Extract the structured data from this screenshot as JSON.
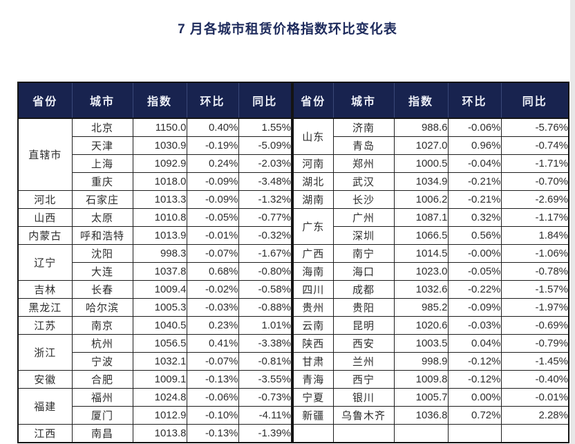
{
  "title": "7 月各城市租赁价格指数环比变化表",
  "columns": [
    "省份",
    "城市",
    "指数",
    "环比",
    "同比"
  ],
  "colors": {
    "header_bg": "#18234f",
    "header_text": "#edf0f8",
    "title_text": "#1e2b5c",
    "border": "#1c1c1c",
    "body_text": "#2d2d2d"
  },
  "left_table": {
    "groups": [
      {
        "province": "直辖市",
        "cities": [
          {
            "city": "北京",
            "index": "1150.0",
            "mom": "0.40%",
            "yoy": "1.55%"
          },
          {
            "city": "天津",
            "index": "1030.9",
            "mom": "-0.19%",
            "yoy": "-5.09%"
          },
          {
            "city": "上海",
            "index": "1092.9",
            "mom": "0.24%",
            "yoy": "-2.03%"
          },
          {
            "city": "重庆",
            "index": "1018.0",
            "mom": "-0.09%",
            "yoy": "-3.48%"
          }
        ]
      },
      {
        "province": "河北",
        "cities": [
          {
            "city": "石家庄",
            "index": "1013.3",
            "mom": "-0.09%",
            "yoy": "-1.32%"
          }
        ]
      },
      {
        "province": "山西",
        "cities": [
          {
            "city": "太原",
            "index": "1010.8",
            "mom": "-0.05%",
            "yoy": "-0.77%"
          }
        ]
      },
      {
        "province": "内蒙古",
        "cities": [
          {
            "city": "呼和浩特",
            "index": "1013.9",
            "mom": "-0.01%",
            "yoy": "-0.32%"
          }
        ]
      },
      {
        "province": "辽宁",
        "cities": [
          {
            "city": "沈阳",
            "index": "998.3",
            "mom": "-0.07%",
            "yoy": "-1.67%"
          },
          {
            "city": "大连",
            "index": "1037.8",
            "mom": "0.68%",
            "yoy": "-0.80%"
          }
        ]
      },
      {
        "province": "吉林",
        "cities": [
          {
            "city": "长春",
            "index": "1009.4",
            "mom": "-0.02%",
            "yoy": "-0.58%"
          }
        ]
      },
      {
        "province": "黑龙江",
        "cities": [
          {
            "city": "哈尔滨",
            "index": "1005.3",
            "mom": "-0.03%",
            "yoy": "-0.88%"
          }
        ]
      },
      {
        "province": "江苏",
        "cities": [
          {
            "city": "南京",
            "index": "1040.5",
            "mom": "0.23%",
            "yoy": "1.01%"
          }
        ]
      },
      {
        "province": "浙江",
        "cities": [
          {
            "city": "杭州",
            "index": "1056.5",
            "mom": "0.41%",
            "yoy": "-3.38%"
          },
          {
            "city": "宁波",
            "index": "1032.1",
            "mom": "-0.07%",
            "yoy": "-0.81%"
          }
        ]
      },
      {
        "province": "安徽",
        "cities": [
          {
            "city": "合肥",
            "index": "1009.1",
            "mom": "-0.13%",
            "yoy": "-3.55%"
          }
        ]
      },
      {
        "province": "福建",
        "cities": [
          {
            "city": "福州",
            "index": "1024.8",
            "mom": "-0.06%",
            "yoy": "-0.73%"
          },
          {
            "city": "厦门",
            "index": "1012.9",
            "mom": "-0.10%",
            "yoy": "-4.11%"
          }
        ]
      },
      {
        "province": "江西",
        "cities": [
          {
            "city": "南昌",
            "index": "1013.8",
            "mom": "-0.13%",
            "yoy": "-1.39%"
          }
        ]
      }
    ]
  },
  "right_table": {
    "groups": [
      {
        "province": "山东",
        "cities": [
          {
            "city": "济南",
            "index": "988.6",
            "mom": "-0.06%",
            "yoy": "-5.76%"
          },
          {
            "city": "青岛",
            "index": "1027.0",
            "mom": "0.96%",
            "yoy": "-0.74%"
          }
        ]
      },
      {
        "province": "河南",
        "cities": [
          {
            "city": "郑州",
            "index": "1000.5",
            "mom": "-0.04%",
            "yoy": "-1.71%"
          }
        ]
      },
      {
        "province": "湖北",
        "cities": [
          {
            "city": "武汉",
            "index": "1034.9",
            "mom": "-0.21%",
            "yoy": "-0.70%"
          }
        ]
      },
      {
        "province": "湖南",
        "cities": [
          {
            "city": "长沙",
            "index": "1006.2",
            "mom": "-0.21%",
            "yoy": "-2.69%"
          }
        ]
      },
      {
        "province": "广东",
        "cities": [
          {
            "city": "广州",
            "index": "1087.1",
            "mom": "0.32%",
            "yoy": "-1.17%"
          },
          {
            "city": "深圳",
            "index": "1066.5",
            "mom": "0.56%",
            "yoy": "1.84%"
          }
        ]
      },
      {
        "province": "广西",
        "cities": [
          {
            "city": "南宁",
            "index": "1014.5",
            "mom": "-0.00%",
            "yoy": "-1.06%"
          }
        ]
      },
      {
        "province": "海南",
        "cities": [
          {
            "city": "海口",
            "index": "1023.0",
            "mom": "-0.05%",
            "yoy": "-0.78%"
          }
        ]
      },
      {
        "province": "四川",
        "cities": [
          {
            "city": "成都",
            "index": "1032.6",
            "mom": "-0.22%",
            "yoy": "-1.57%"
          }
        ]
      },
      {
        "province": "贵州",
        "cities": [
          {
            "city": "贵阳",
            "index": "985.2",
            "mom": "-0.09%",
            "yoy": "-1.97%"
          }
        ]
      },
      {
        "province": "云南",
        "cities": [
          {
            "city": "昆明",
            "index": "1020.6",
            "mom": "-0.03%",
            "yoy": "-0.69%"
          }
        ]
      },
      {
        "province": "陕西",
        "cities": [
          {
            "city": "西安",
            "index": "1003.5",
            "mom": "0.04%",
            "yoy": "-0.79%"
          }
        ]
      },
      {
        "province": "甘肃",
        "cities": [
          {
            "city": "兰州",
            "index": "998.9",
            "mom": "-0.12%",
            "yoy": "-1.45%"
          }
        ]
      },
      {
        "province": "青海",
        "cities": [
          {
            "city": "西宁",
            "index": "1009.8",
            "mom": "-0.12%",
            "yoy": "-0.40%"
          }
        ]
      },
      {
        "province": "宁夏",
        "cities": [
          {
            "city": "银川",
            "index": "1005.7",
            "mom": "0.00%",
            "yoy": "-0.01%"
          }
        ]
      },
      {
        "province": "新疆",
        "cities": [
          {
            "city": "乌鲁木齐",
            "index": "1036.8",
            "mom": "0.72%",
            "yoy": "2.28%"
          }
        ]
      },
      {
        "province": "",
        "cities": [
          {
            "city": "",
            "index": "",
            "mom": "",
            "yoy": ""
          }
        ]
      }
    ]
  }
}
